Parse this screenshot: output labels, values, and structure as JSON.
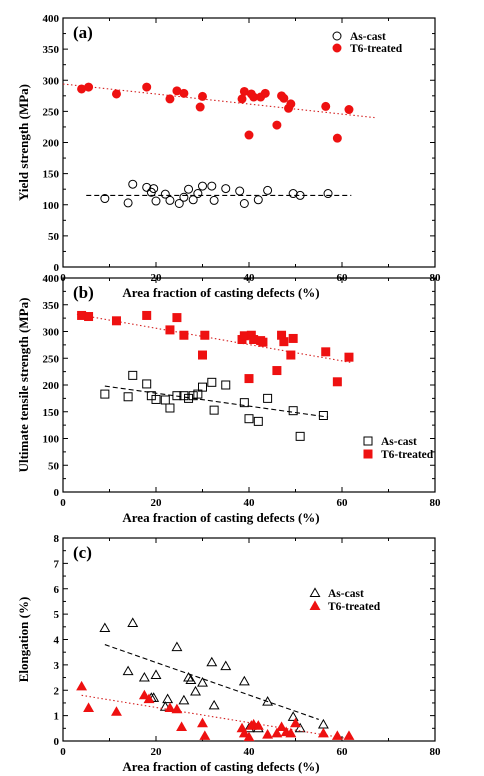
{
  "chart_data": [
    {
      "type": "scatter",
      "panel_label": "(a)",
      "xlabel": "Area fraction of casting defects (%)",
      "ylabel": "Yield strength (MPa)",
      "xlim": [
        0,
        80
      ],
      "ylim": [
        0,
        400
      ],
      "xticks": [
        "0",
        "20",
        "40",
        "60",
        "80"
      ],
      "yticks": [
        "0",
        "50",
        "100",
        "150",
        "200",
        "250",
        "300",
        "350",
        "400"
      ],
      "legend_position": "top-right",
      "series": [
        {
          "name": "As-cast",
          "marker": "open-circle",
          "color": "#000000",
          "x": [
            9,
            14,
            15,
            18,
            19,
            19.5,
            20,
            22,
            23,
            25,
            26,
            27,
            28,
            29,
            30,
            32,
            32.5,
            35,
            38,
            39,
            42,
            44,
            49.5,
            51,
            57
          ],
          "y": [
            110,
            103,
            133,
            128,
            120,
            126,
            106,
            117,
            107,
            102,
            112,
            125,
            108,
            118,
            130,
            130,
            107,
            126,
            122,
            102,
            108,
            123,
            118,
            115,
            118
          ],
          "trend": {
            "style": "dashed",
            "x": [
              5,
              62
            ],
            "y": [
              115,
              115
            ]
          }
        },
        {
          "name": "T6-treated",
          "marker": "filled-circle",
          "color": "#ee1111",
          "x": [
            4,
            5.5,
            11.5,
            18,
            23,
            24.5,
            26,
            29.5,
            30,
            38.5,
            39,
            40,
            40.5,
            41,
            42.5,
            43.5,
            46,
            47,
            47.5,
            48.5,
            49,
            56.5,
            59,
            61.5
          ],
          "y": [
            286,
            289,
            278,
            289,
            270,
            283,
            279,
            257,
            274,
            270,
            282,
            212,
            278,
            273,
            273,
            279,
            228,
            275,
            271,
            255,
            262,
            258,
            207,
            253
          ],
          "trend": {
            "style": "dotted",
            "x": [
              0,
              67
            ],
            "y": [
              294,
              240
            ]
          }
        }
      ]
    },
    {
      "type": "scatter",
      "panel_label": "(b)",
      "xlabel": "Area fraction of casting defects (%)",
      "ylabel": "Ultimate tensile strength (MPa)",
      "xlim": [
        0,
        80
      ],
      "ylim": [
        0,
        400
      ],
      "xticks": [
        "0",
        "20",
        "40",
        "60",
        "80"
      ],
      "yticks": [
        "0",
        "50",
        "100",
        "150",
        "200",
        "250",
        "300",
        "350",
        "400"
      ],
      "legend_position": "bottom-right",
      "series": [
        {
          "name": "As-cast",
          "marker": "open-square",
          "color": "#000000",
          "x": [
            9,
            14,
            15,
            18,
            19,
            20,
            22,
            23,
            24.5,
            26,
            27,
            28,
            29,
            30,
            32,
            32.5,
            35,
            39,
            40,
            42,
            44,
            49.5,
            51,
            56
          ],
          "y": [
            183,
            178,
            218,
            202,
            180,
            173,
            172,
            157,
            180,
            180,
            175,
            180,
            183,
            196,
            205,
            153,
            200,
            167,
            137,
            132,
            175,
            152,
            104,
            143
          ],
          "trend": {
            "style": "dashed",
            "x": [
              9,
              57
            ],
            "y": [
              198,
              140
            ]
          }
        },
        {
          "name": "T6-treated",
          "marker": "filled-square",
          "color": "#ee1111",
          "x": [
            4,
            5.5,
            11.5,
            18,
            23,
            24.5,
            26,
            30,
            30.5,
            38.5,
            39,
            40,
            40.5,
            41,
            42.5,
            43,
            46,
            47,
            47.5,
            49,
            49.5,
            56.5,
            59,
            61.5
          ],
          "y": [
            330,
            328,
            320,
            330,
            303,
            326,
            293,
            256,
            293,
            285,
            292,
            212,
            293,
            285,
            283,
            280,
            227,
            293,
            281,
            256,
            287,
            262,
            206,
            252
          ],
          "trend": {
            "style": "dotted",
            "x": [
              3,
              62
            ],
            "y": [
              332,
              242
            ]
          }
        }
      ]
    },
    {
      "type": "scatter",
      "panel_label": "(c)",
      "xlabel": "Area fraction of casting defects (%)",
      "ylabel": "Elongation (%)",
      "xlim": [
        0,
        80
      ],
      "ylim": [
        0,
        8
      ],
      "xticks": [
        "0",
        "20",
        "40",
        "60",
        "80"
      ],
      "yticks": [
        "0",
        "1",
        "2",
        "3",
        "4",
        "5",
        "6",
        "7",
        "8"
      ],
      "legend_position": "top-right",
      "series": [
        {
          "name": "As-cast",
          "marker": "open-triangle",
          "color": "#000000",
          "x": [
            9,
            14,
            15,
            17.5,
            19,
            19.5,
            20,
            22,
            22.5,
            24.5,
            26,
            27,
            27.5,
            28.5,
            30,
            32,
            32.5,
            35,
            39,
            40,
            42,
            44,
            49.5,
            51,
            56
          ],
          "y": [
            4.45,
            2.75,
            4.65,
            2.5,
            1.7,
            1.7,
            2.6,
            1.35,
            1.65,
            3.7,
            1.6,
            2.5,
            2.4,
            1.95,
            2.3,
            3.1,
            1.4,
            2.95,
            2.35,
            0.5,
            0.5,
            1.55,
            0.95,
            0.5,
            0.65
          ],
          "trend": {
            "style": "dashed",
            "x": [
              9,
              55
            ],
            "y": [
              3.8,
              0.85
            ]
          }
        },
        {
          "name": "T6-treated",
          "marker": "filled-triangle",
          "color": "#ee1111",
          "x": [
            4,
            5.5,
            11.5,
            17.5,
            18.5,
            23,
            24.5,
            25.5,
            30,
            30.5,
            38.5,
            39,
            40,
            40.5,
            41,
            42,
            44,
            46,
            47,
            48,
            49,
            50,
            56,
            59,
            61.5
          ],
          "y": [
            2.15,
            1.3,
            1.15,
            1.8,
            1.65,
            1.3,
            1.25,
            0.55,
            0.7,
            0.2,
            0.5,
            0.3,
            0.15,
            0.6,
            0.65,
            0.6,
            0.25,
            0.3,
            0.55,
            0.35,
            0.3,
            0.7,
            0.3,
            0.2,
            0.2
          ],
          "trend": {
            "style": "dotted",
            "x": [
              4,
              61
            ],
            "y": [
              1.8,
              0.1
            ]
          }
        }
      ]
    }
  ]
}
